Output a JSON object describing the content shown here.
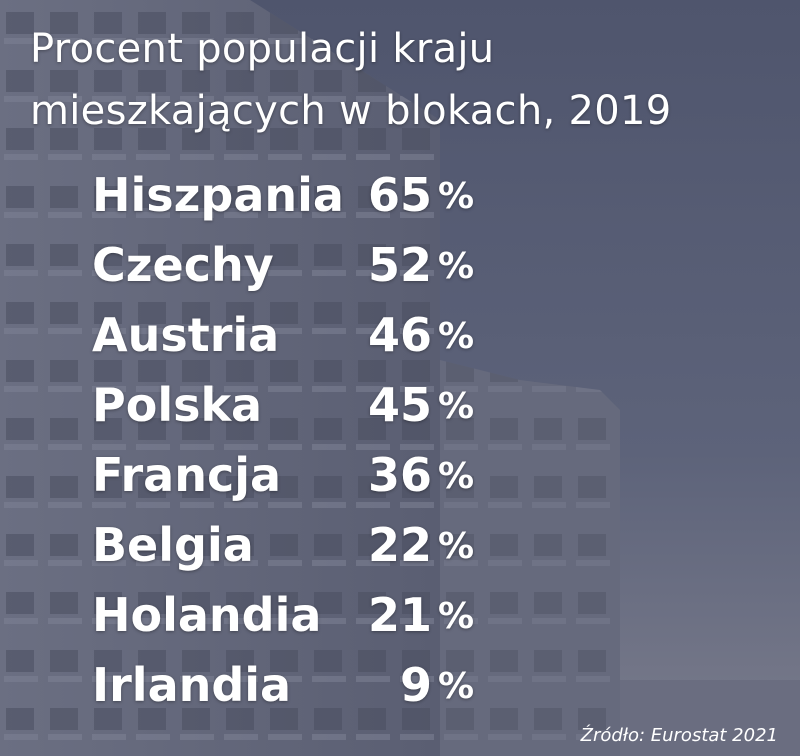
{
  "header": {
    "title_lines": [
      "Procent populacji kraju",
      "mieszkających w blokach, 2019"
    ]
  },
  "rows": [
    {
      "name": "Hiszpania",
      "value": 65,
      "unit": "%"
    },
    {
      "name": "Czechy",
      "value": 52,
      "unit": "%"
    },
    {
      "name": "Austria",
      "value": 46,
      "unit": "%"
    },
    {
      "name": "Polska",
      "value": 45,
      "unit": "%"
    },
    {
      "name": "Francja",
      "value": 36,
      "unit": "%"
    },
    {
      "name": "Belgia",
      "value": 22,
      "unit": "%"
    },
    {
      "name": "Holandia",
      "value": 21,
      "unit": "%"
    },
    {
      "name": "Irlandia",
      "value": 9,
      "unit": "%"
    }
  ],
  "footer": {
    "source": "Źródło: Eurostat 2021"
  }
}
